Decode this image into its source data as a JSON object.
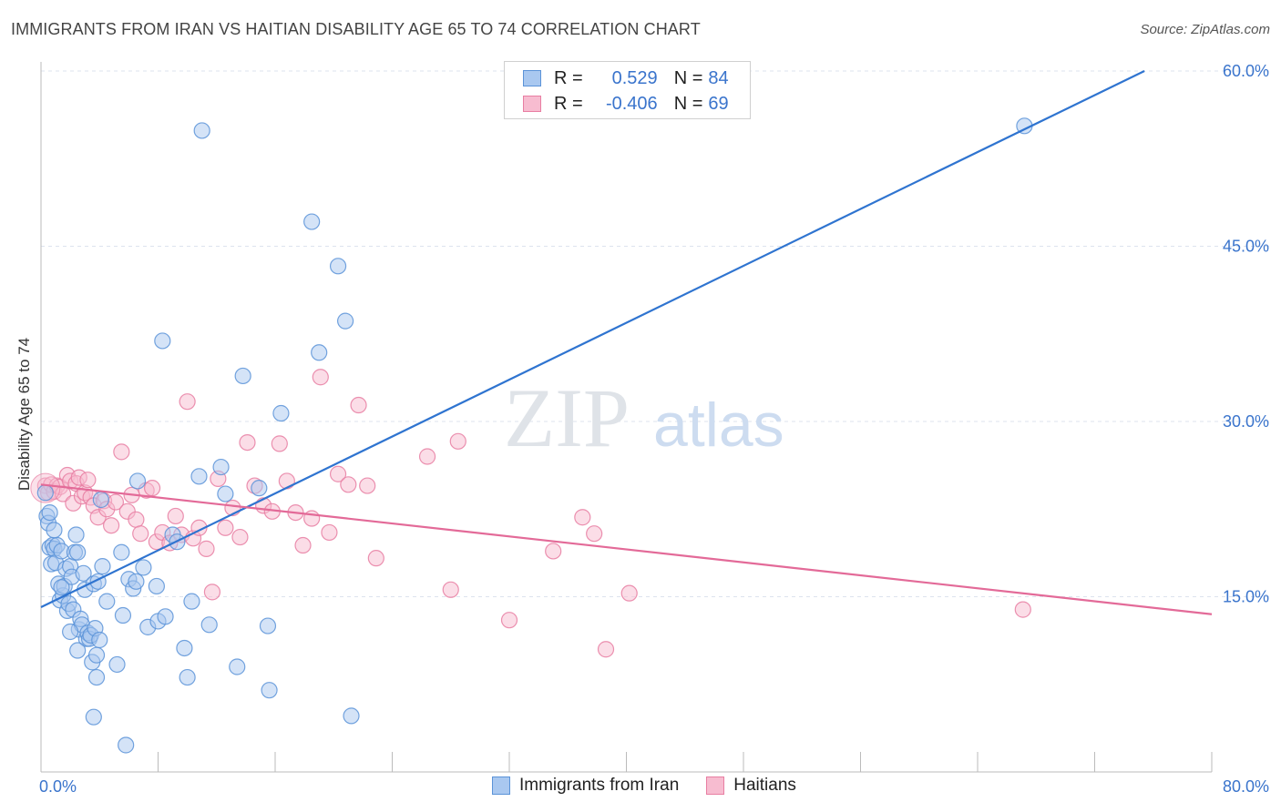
{
  "title": "IMMIGRANTS FROM IRAN VS HAITIAN DISABILITY AGE 65 TO 74 CORRELATION CHART",
  "source": "Source: ZipAtlas.com",
  "watermark": {
    "zip": "ZIP",
    "atlas": "atlas"
  },
  "legend": {
    "rows": [
      {
        "r_label": "R = ",
        "r_value": "0.529",
        "n_label": "N = ",
        "n_value": "84"
      },
      {
        "r_label": "R = ",
        "r_value": "-0.406",
        "n_label": "N = ",
        "n_value": "69"
      }
    ],
    "bottom": [
      "Immigrants from Iran",
      "Haitians"
    ]
  },
  "colors": {
    "iran_fill": "#a9c8f0",
    "iran_stroke": "#5b93d8",
    "iran_line": "#2f74d0",
    "haiti_fill": "#f7bcd0",
    "haiti_stroke": "#e87ea2",
    "haiti_line": "#e36a98",
    "grid": "#dde3ee",
    "tick_text": "#3a74cc"
  },
  "chart_data": {
    "type": "scatter",
    "title": "IMMIGRANTS FROM IRAN VS HAITIAN DISABILITY AGE 65 TO 74 CORRELATION CHART",
    "xlabel": "",
    "ylabel": "Disability Age 65 to 74",
    "xlim": [
      0,
      80
    ],
    "ylim": [
      0,
      60
    ],
    "x_tick_labels": [
      "0.0%",
      "80.0%"
    ],
    "y_ticks": [
      15,
      30,
      45,
      60
    ],
    "y_tick_labels": [
      "15.0%",
      "30.0%",
      "45.0%",
      "60.0%"
    ],
    "grid": true,
    "legend_position": "top-center",
    "series": [
      {
        "name": "Immigrants from Iran",
        "r": 0.529,
        "n": 84,
        "trend": {
          "x": [
            0,
            75.4
          ],
          "y": [
            14.1,
            60.0
          ]
        },
        "points": [
          [
            0.3,
            23.9
          ],
          [
            0.4,
            21.9
          ],
          [
            0.5,
            21.3
          ],
          [
            0.6,
            19.2
          ],
          [
            0.7,
            17.8
          ],
          [
            0.8,
            19.4
          ],
          [
            0.9,
            19.1
          ],
          [
            1.0,
            17.9
          ],
          [
            1.1,
            19.4
          ],
          [
            1.2,
            16.1
          ],
          [
            1.3,
            14.7
          ],
          [
            1.4,
            18.9
          ],
          [
            1.5,
            15.1
          ],
          [
            1.6,
            15.9
          ],
          [
            1.7,
            17.4
          ],
          [
            1.8,
            13.8
          ],
          [
            1.9,
            14.4
          ],
          [
            2.0,
            17.6
          ],
          [
            2.1,
            16.7
          ],
          [
            2.2,
            13.9
          ],
          [
            2.3,
            18.8
          ],
          [
            2.4,
            20.3
          ],
          [
            2.5,
            18.8
          ],
          [
            2.6,
            12.2
          ],
          [
            2.7,
            13.1
          ],
          [
            2.8,
            12.6
          ],
          [
            2.9,
            17.0
          ],
          [
            3.0,
            15.6
          ],
          [
            3.1,
            11.4
          ],
          [
            3.2,
            11.9
          ],
          [
            3.3,
            11.4
          ],
          [
            3.4,
            11.7
          ],
          [
            3.5,
            9.4
          ],
          [
            3.6,
            16.1
          ],
          [
            3.7,
            12.3
          ],
          [
            3.8,
            10.0
          ],
          [
            3.9,
            16.3
          ],
          [
            4.0,
            11.3
          ],
          [
            4.1,
            23.3
          ],
          [
            2.5,
            10.4
          ],
          [
            3.8,
            8.1
          ],
          [
            4.2,
            17.6
          ],
          [
            5.2,
            9.2
          ],
          [
            5.5,
            18.8
          ],
          [
            5.6,
            13.4
          ],
          [
            5.8,
            2.3
          ],
          [
            6.0,
            16.5
          ],
          [
            6.3,
            15.7
          ],
          [
            6.5,
            16.3
          ],
          [
            6.6,
            24.9
          ],
          [
            7.0,
            17.5
          ],
          [
            7.3,
            12.4
          ],
          [
            8.0,
            12.9
          ],
          [
            8.3,
            36.9
          ],
          [
            8.5,
            13.3
          ],
          [
            9.0,
            20.3
          ],
          [
            9.3,
            19.7
          ],
          [
            9.8,
            10.6
          ],
          [
            10.0,
            8.1
          ],
          [
            10.3,
            14.6
          ],
          [
            10.8,
            25.3
          ],
          [
            11.0,
            54.9
          ],
          [
            11.5,
            12.6
          ],
          [
            12.3,
            26.1
          ],
          [
            12.6,
            23.8
          ],
          [
            13.4,
            9.0
          ],
          [
            13.8,
            33.9
          ],
          [
            14.9,
            24.3
          ],
          [
            15.5,
            12.5
          ],
          [
            15.6,
            7.0
          ],
          [
            16.4,
            30.7
          ],
          [
            18.5,
            47.1
          ],
          [
            19.0,
            35.9
          ],
          [
            20.3,
            43.3
          ],
          [
            20.8,
            38.6
          ],
          [
            21.2,
            4.8
          ],
          [
            0.9,
            20.7
          ],
          [
            1.4,
            15.8
          ],
          [
            2.0,
            12.0
          ],
          [
            0.6,
            22.2
          ],
          [
            3.6,
            4.7
          ],
          [
            67.2,
            55.3
          ],
          [
            7.9,
            15.9
          ],
          [
            4.5,
            14.6
          ]
        ]
      },
      {
        "name": "Haitians",
        "r": -0.406,
        "n": 69,
        "trend": {
          "x": [
            0,
            80
          ],
          "y": [
            24.6,
            13.5
          ]
        },
        "points": [
          [
            0.3,
            24.5
          ],
          [
            0.5,
            23.9
          ],
          [
            0.7,
            24.6
          ],
          [
            0.9,
            24.0
          ],
          [
            1.1,
            24.5
          ],
          [
            1.3,
            24.4
          ],
          [
            1.5,
            23.8
          ],
          [
            1.8,
            25.4
          ],
          [
            2.0,
            24.9
          ],
          [
            2.2,
            23.0
          ],
          [
            2.4,
            24.7
          ],
          [
            2.6,
            25.2
          ],
          [
            2.8,
            23.6
          ],
          [
            3.0,
            23.9
          ],
          [
            3.2,
            25.0
          ],
          [
            3.4,
            23.5
          ],
          [
            3.6,
            22.8
          ],
          [
            3.9,
            21.8
          ],
          [
            4.3,
            23.2
          ],
          [
            4.5,
            22.5
          ],
          [
            4.8,
            21.1
          ],
          [
            5.1,
            23.1
          ],
          [
            5.5,
            27.4
          ],
          [
            5.9,
            22.3
          ],
          [
            6.2,
            23.7
          ],
          [
            6.5,
            21.6
          ],
          [
            6.8,
            20.4
          ],
          [
            7.2,
            24.1
          ],
          [
            7.6,
            24.3
          ],
          [
            7.9,
            19.7
          ],
          [
            8.3,
            20.5
          ],
          [
            8.8,
            19.6
          ],
          [
            9.2,
            21.9
          ],
          [
            9.6,
            20.3
          ],
          [
            10.0,
            31.7
          ],
          [
            10.4,
            20.0
          ],
          [
            10.8,
            20.9
          ],
          [
            11.3,
            19.1
          ],
          [
            11.7,
            15.4
          ],
          [
            12.1,
            25.1
          ],
          [
            12.6,
            20.9
          ],
          [
            13.1,
            22.6
          ],
          [
            13.6,
            20.1
          ],
          [
            14.1,
            28.2
          ],
          [
            14.6,
            24.5
          ],
          [
            15.2,
            22.8
          ],
          [
            15.8,
            22.3
          ],
          [
            16.3,
            28.1
          ],
          [
            16.8,
            24.9
          ],
          [
            17.4,
            22.2
          ],
          [
            17.9,
            19.4
          ],
          [
            18.5,
            21.7
          ],
          [
            19.1,
            33.8
          ],
          [
            19.7,
            20.5
          ],
          [
            20.3,
            25.5
          ],
          [
            21.0,
            24.6
          ],
          [
            21.7,
            31.4
          ],
          [
            22.3,
            24.5
          ],
          [
            22.9,
            18.3
          ],
          [
            26.4,
            27.0
          ],
          [
            28.0,
            15.6
          ],
          [
            28.5,
            28.3
          ],
          [
            32.0,
            13.0
          ],
          [
            35.0,
            18.9
          ],
          [
            37.0,
            21.8
          ],
          [
            37.8,
            20.4
          ],
          [
            38.6,
            10.5
          ],
          [
            40.2,
            15.3
          ],
          [
            67.1,
            13.9
          ]
        ]
      }
    ]
  }
}
